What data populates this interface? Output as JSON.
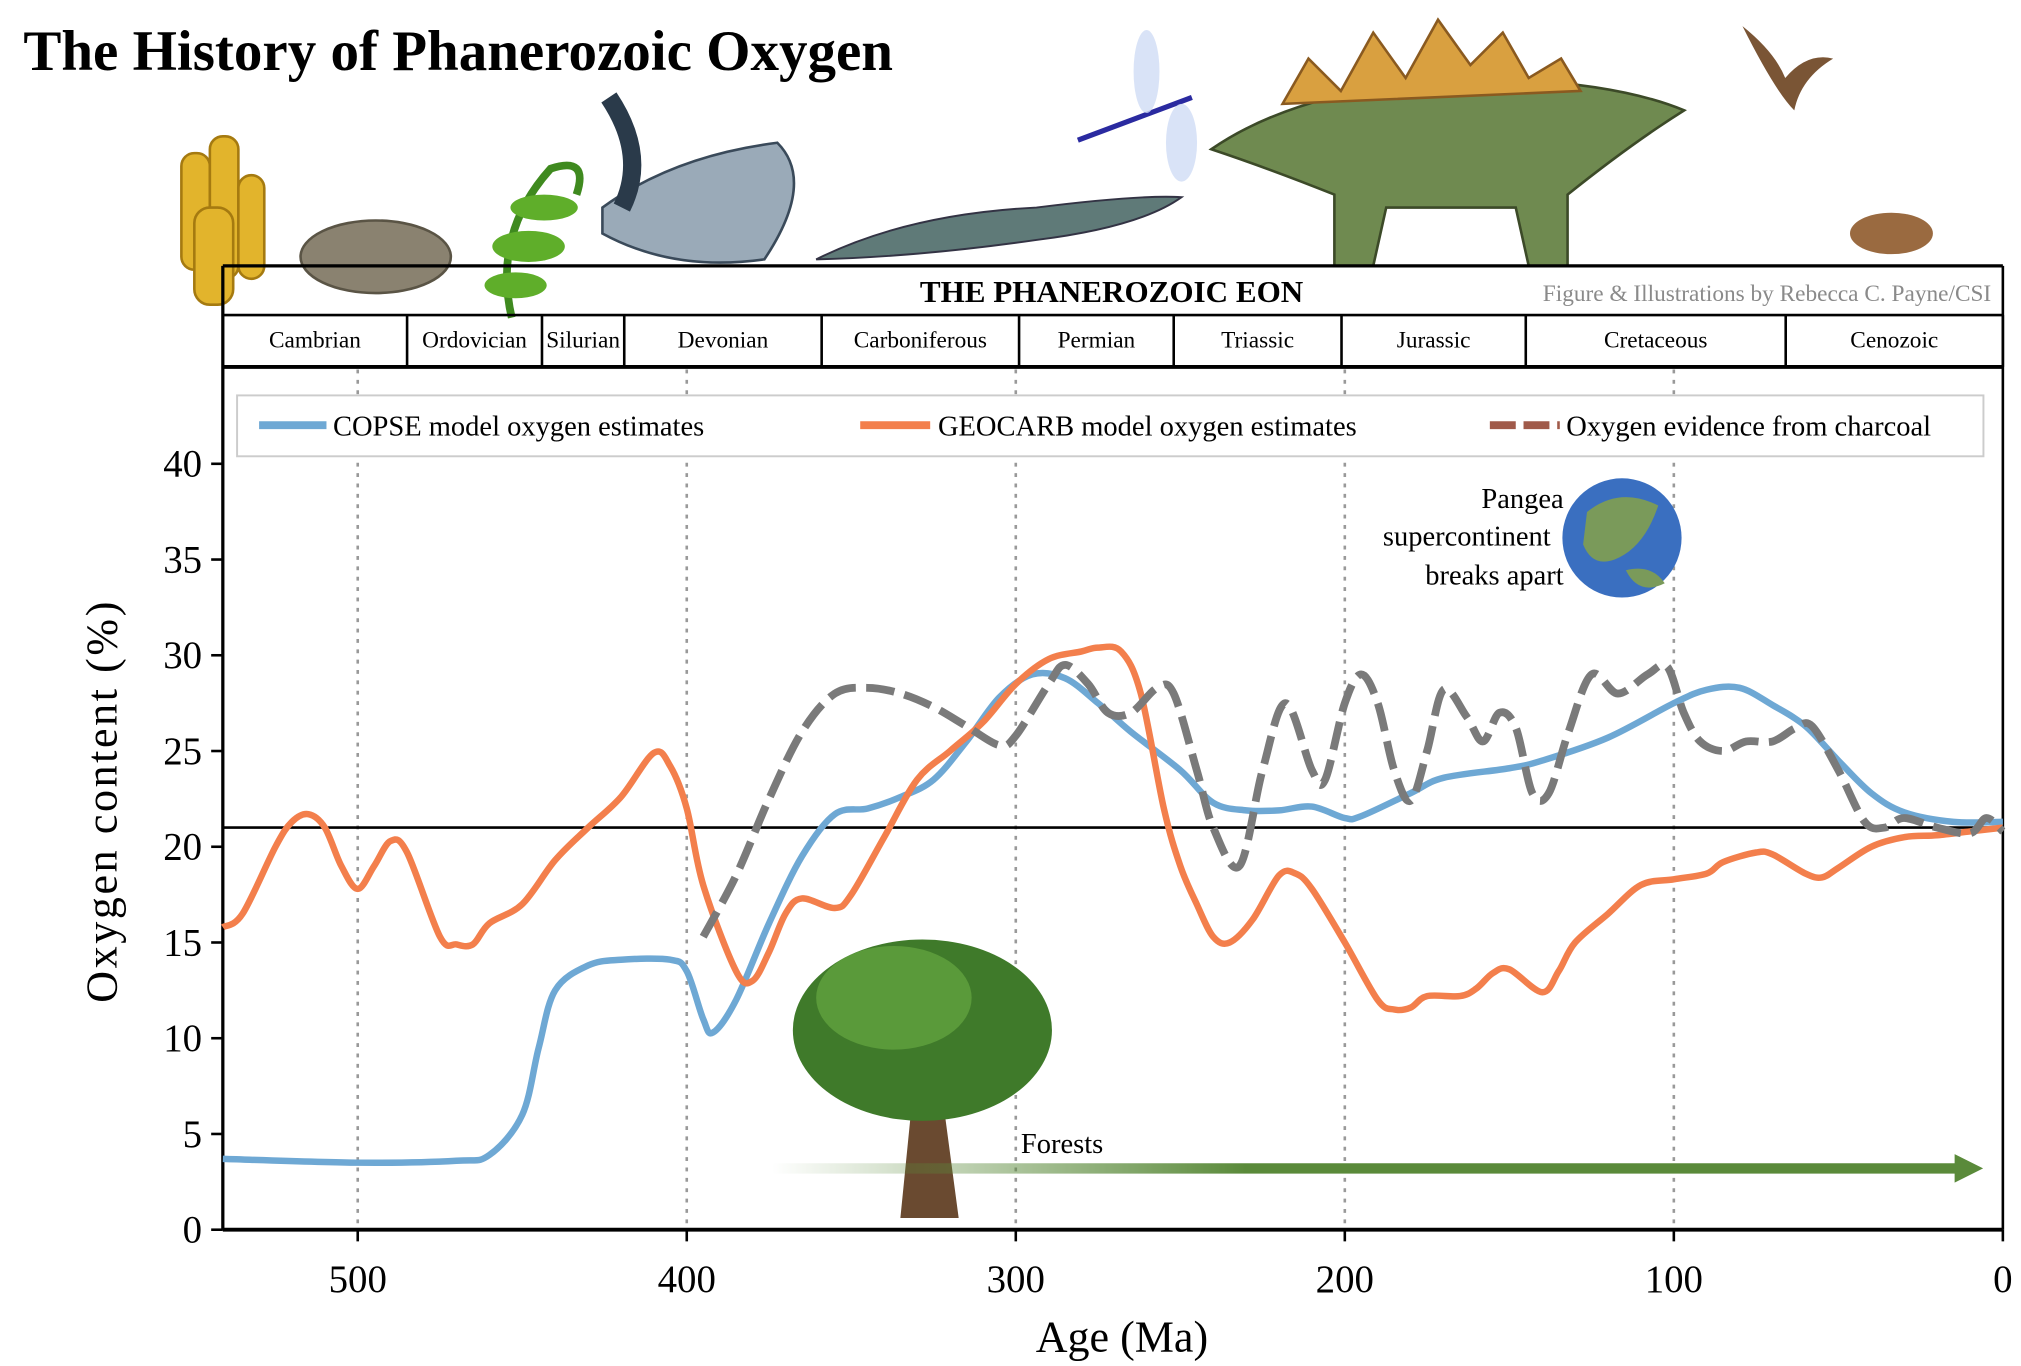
{
  "chart_data": {
    "type": "line",
    "title": "The History of Phanerozoic Oxygen",
    "header": {
      "eon_label": "THE PHANEROZOIC EON",
      "credit": "Figure & Illustrations by Rebecca C. Payne/CSI"
    },
    "periods": [
      {
        "name": "Cambrian",
        "start": 541,
        "end": 485
      },
      {
        "name": "Ordovician",
        "start": 485,
        "end": 444
      },
      {
        "name": "Silurian",
        "start": 444,
        "end": 419
      },
      {
        "name": "Devonian",
        "start": 419,
        "end": 359
      },
      {
        "name": "Carboniferous",
        "start": 359,
        "end": 299
      },
      {
        "name": "Permian",
        "start": 299,
        "end": 252
      },
      {
        "name": "Triassic",
        "start": 252,
        "end": 201
      },
      {
        "name": "Jurassic",
        "start": 201,
        "end": 145
      },
      {
        "name": "Cretaceous",
        "start": 145,
        "end": 66
      },
      {
        "name": "Cenozoic",
        "start": 66,
        "end": 0
      }
    ],
    "xlabel": "Age (Ma)",
    "ylabel": "Oxygen content (%)",
    "xlim": [
      541,
      0
    ],
    "ylim": [
      0,
      42
    ],
    "xticks": [
      500,
      400,
      300,
      200,
      100,
      0
    ],
    "yticks": [
      0,
      5,
      10,
      15,
      20,
      25,
      30,
      35,
      40
    ],
    "grid": "vertical dotted at x ticks",
    "legend_position": "top",
    "reference_line": {
      "y": 21,
      "color": "#000000"
    },
    "series": [
      {
        "name": "COPSE model oxygen estimates",
        "color": "#6ea8d4",
        "style": "solid",
        "x": [
          541,
          500,
          470,
          460,
          450,
          445,
          440,
          430,
          420,
          405,
          400,
          395,
          392,
          385,
          375,
          365,
          355,
          345,
          335,
          325,
          315,
          305,
          295,
          285,
          275,
          265,
          250,
          240,
          230,
          220,
          210,
          200,
          195,
          180,
          170,
          150,
          140,
          120,
          100,
          90,
          80,
          70,
          60,
          50,
          40,
          30,
          15,
          0
        ],
        "y": [
          3.7,
          3.5,
          3.6,
          3.9,
          6,
          9.5,
          12.5,
          13.8,
          14.1,
          14.1,
          13.5,
          11,
          10.3,
          12,
          16,
          19.5,
          21.7,
          22,
          22.6,
          23.5,
          25.5,
          27.8,
          29,
          28.8,
          27.5,
          26,
          24,
          22.3,
          21.9,
          21.9,
          22.1,
          21.5,
          21.6,
          22.8,
          23.6,
          24.1,
          24.5,
          25.7,
          27.5,
          28.2,
          28.3,
          27.4,
          26.3,
          24.5,
          22.8,
          21.8,
          21.3,
          21.3
        ]
      },
      {
        "name": "GEOCARB model oxygen estimates",
        "color": "#f37f4c",
        "style": "solid",
        "x": [
          541,
          535,
          525,
          520,
          515,
          510,
          505,
          500,
          495,
          490,
          485,
          475,
          470,
          465,
          460,
          450,
          440,
          430,
          420,
          410,
          405,
          400,
          395,
          385,
          380,
          375,
          370,
          365,
          355,
          350,
          340,
          330,
          320,
          310,
          300,
          290,
          280,
          275,
          268,
          262,
          255,
          250,
          245,
          240,
          235,
          228,
          220,
          215,
          210,
          200,
          190,
          185,
          180,
          175,
          165,
          160,
          155,
          150,
          140,
          135,
          130,
          120,
          110,
          100,
          90,
          85,
          75,
          70,
          60,
          55,
          50,
          40,
          30,
          20,
          10,
          0
        ],
        "y": [
          15.8,
          16.5,
          20,
          21.3,
          21.7,
          21,
          19,
          17.8,
          19,
          20.3,
          19.7,
          15.3,
          14.9,
          14.9,
          16,
          17,
          19.3,
          21,
          22.6,
          24.9,
          24.2,
          22,
          18,
          13.5,
          13,
          14.5,
          16.5,
          17.3,
          16.8,
          17.5,
          20.5,
          23.5,
          25,
          26.5,
          28.5,
          29.8,
          30.2,
          30.4,
          30.2,
          28,
          22,
          19,
          17,
          15.3,
          15,
          16.2,
          18.5,
          18.6,
          17.8,
          15,
          12,
          11.5,
          11.6,
          12.2,
          12.2,
          12.6,
          13.4,
          13.6,
          12.4,
          13.5,
          15,
          16.5,
          18,
          18.3,
          18.6,
          19.2,
          19.7,
          19.6,
          18.6,
          18.4,
          18.9,
          20,
          20.5,
          20.6,
          20.8,
          21
        ]
      },
      {
        "name": "Oxygen evidence from charcoal",
        "color": "#7a7a7a",
        "legend_color": "#a05a4a",
        "style": "dashed",
        "x": [
          395,
          385,
          375,
          365,
          355,
          345,
          335,
          325,
          315,
          305,
          300,
          290,
          285,
          278,
          272,
          265,
          257,
          252,
          245,
          240,
          232,
          225,
          218,
          210,
          206,
          200,
          195,
          190,
          185,
          180,
          175,
          170,
          163,
          158,
          153,
          148,
          143,
          138,
          132,
          125,
          117,
          108,
          102,
          97,
          92,
          85,
          78,
          70,
          63,
          58,
          50,
          42,
          36,
          30,
          20,
          10,
          5,
          0
        ],
        "y": [
          15.3,
          18.5,
          22.5,
          26,
          28,
          28.3,
          28,
          27.3,
          26.3,
          25.3,
          25.8,
          28.5,
          29.5,
          28.5,
          27,
          27,
          28.3,
          28,
          24,
          21,
          19,
          24,
          27.5,
          24,
          23.5,
          27.5,
          29,
          27.5,
          24,
          22.4,
          25,
          28.2,
          26.8,
          25.5,
          27,
          26.2,
          22.8,
          22.8,
          26,
          29,
          28,
          29,
          29.4,
          27,
          25.5,
          25,
          25.5,
          25.5,
          26.2,
          26.3,
          24,
          21.3,
          21,
          21.5,
          21,
          20.7,
          21.5,
          20.8
        ]
      }
    ],
    "annotations": {
      "pangea": [
        "Pangea",
        "supercontinent",
        "breaks apart"
      ],
      "forests": {
        "label": "Forests",
        "from_age": 374,
        "to_age": 6,
        "y": 3.2,
        "color": "#5a8a3a"
      }
    }
  }
}
